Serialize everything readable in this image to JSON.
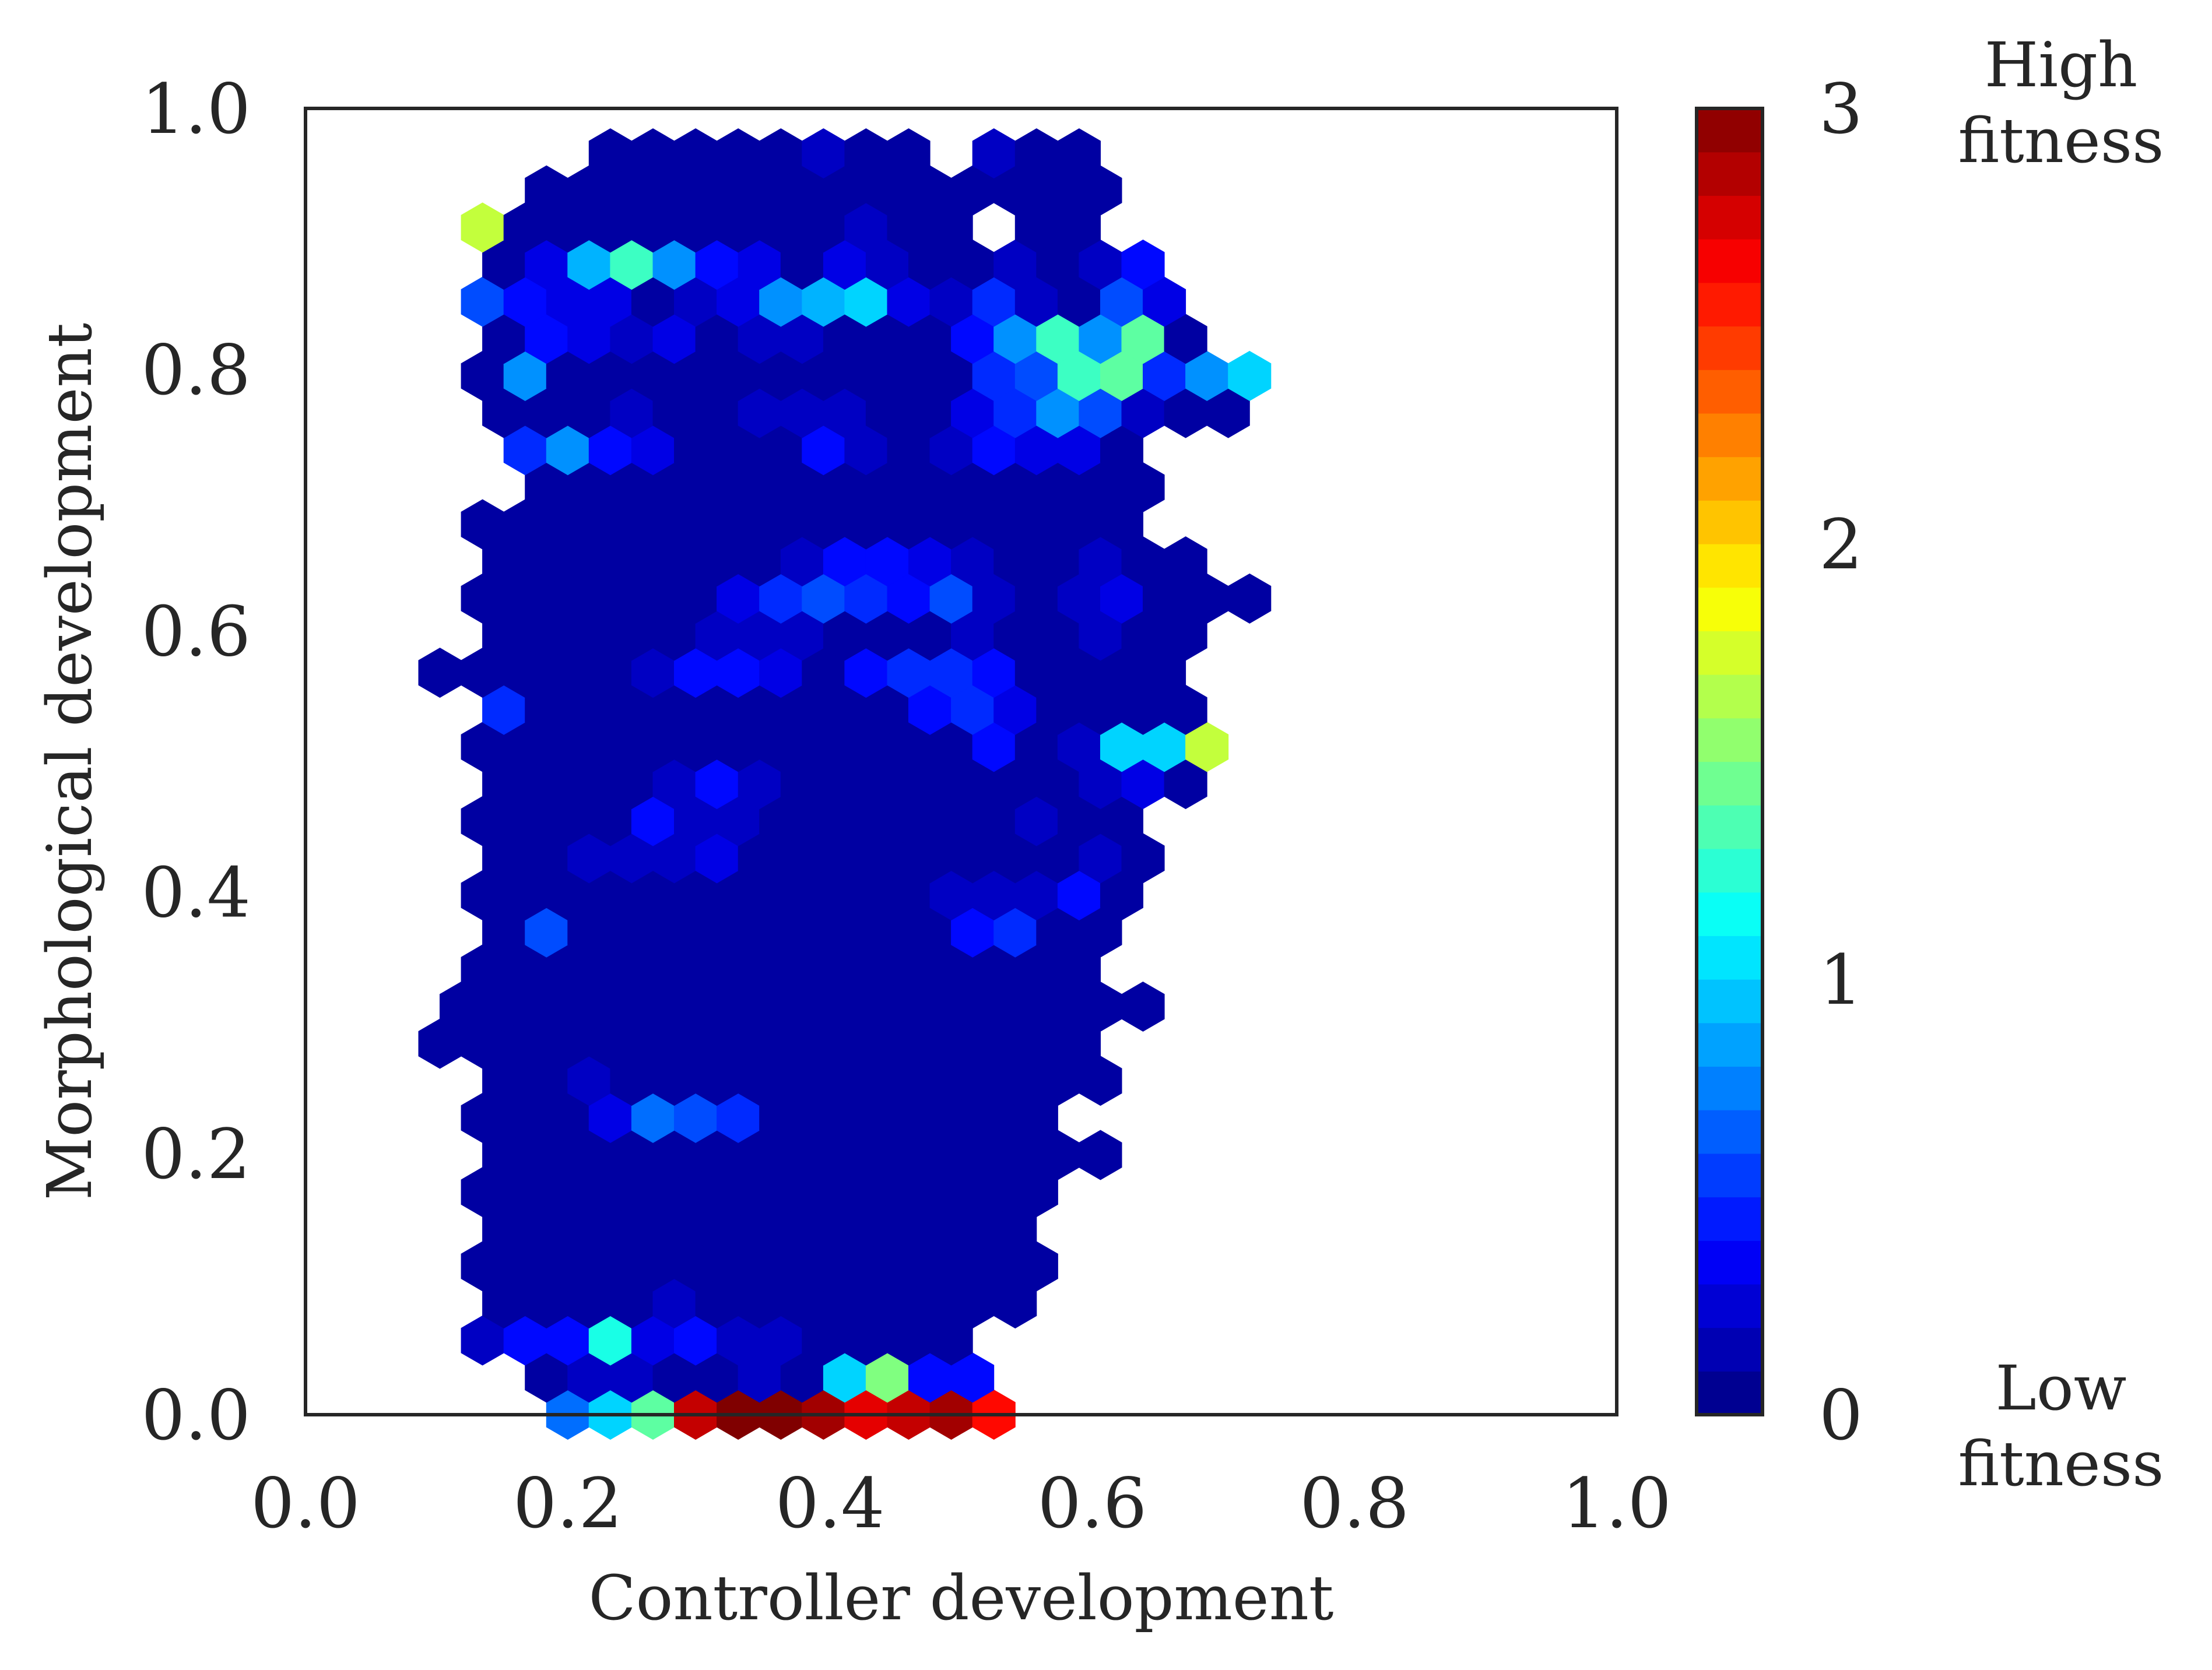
{
  "chart_data": {
    "type": "heatmap",
    "subtype": "hexbin",
    "xlabel": "Controller development",
    "ylabel": "Morphological development",
    "xlim": [
      0,
      1
    ],
    "ylim": [
      0,
      1
    ],
    "x_ticks": [
      "0.0",
      "0.2",
      "0.4",
      "0.6",
      "0.8",
      "1.0"
    ],
    "y_ticks": [
      "0.0",
      "0.2",
      "0.4",
      "0.6",
      "0.8",
      "1.0"
    ],
    "colorbar": {
      "colormap": "jet",
      "range": [
        0,
        3
      ],
      "ticks": [
        "0",
        "1",
        "2",
        "3"
      ],
      "top_label": [
        "High",
        "fitness"
      ],
      "bottom_label": [
        "Low",
        "fitness"
      ]
    },
    "grid": false,
    "hex_grid": {
      "x0": 0.2,
      "dx": 0.0325,
      "y0": 0.0,
      "dy": 0.0284
    },
    "rows": [
      {
        "row": 0,
        "start": 0,
        "values": [
          0.7,
          1.0,
          1.4,
          2.8,
          3.0,
          3.0,
          2.9,
          2.7,
          2.8,
          2.9,
          2.6
        ]
      },
      {
        "row": 1,
        "start": -1,
        "values": [
          0.1,
          0.2,
          0.2,
          0.1,
          0.1,
          0.2,
          0.1,
          1.0,
          1.5,
          0.4,
          0.4
        ]
      },
      {
        "row": 2,
        "start": -2,
        "values": [
          0.2,
          0.4,
          0.4,
          1.2,
          0.3,
          0.4,
          0.2,
          0.2,
          0.1,
          0.1,
          0.1,
          0.1
        ]
      },
      {
        "row": 3,
        "start": -2,
        "values": [
          0.1,
          0.1,
          0.1,
          0.1,
          0.2,
          0.1,
          0.1,
          0.1,
          0.1,
          0.1,
          0.1,
          0.1,
          0.1
        ]
      },
      {
        "row": 4,
        "start": -2,
        "values": [
          0.1,
          0.1,
          0.1,
          0.1,
          0.1,
          0.1,
          0.1,
          0.1,
          0.1,
          0.1,
          0.1,
          0.1,
          0.1,
          0.1
        ]
      },
      {
        "row": 5,
        "start": -2,
        "values": [
          0.1,
          0.1,
          0.1,
          0.1,
          0.1,
          0.1,
          0.1,
          0.1,
          0.1,
          0.1,
          0.1,
          0.1,
          0.1
        ]
      },
      {
        "row": 6,
        "start": -2,
        "values": [
          0.1,
          0.1,
          0.1,
          0.1,
          0.1,
          0.1,
          0.1,
          0.1,
          0.1,
          0.1,
          0.1,
          0.1,
          0.1,
          0.1
        ]
      },
      {
        "row": 7,
        "start": -2,
        "values": [
          0.1,
          0.1,
          0.1,
          0.1,
          0.1,
          0.1,
          0.1,
          0.1,
          0.1,
          0.1,
          0.1,
          0.1,
          0.1,
          0.1,
          0.1
        ]
      },
      {
        "row": 8,
        "start": -2,
        "values": [
          0.1,
          0.1,
          0.1,
          0.3,
          0.7,
          0.6,
          0.5,
          0.1,
          0.1,
          0.1,
          0.1,
          0.1,
          0.1,
          0.1
        ]
      },
      {
        "row": 9,
        "start": -2,
        "values": [
          0.1,
          0.1,
          0.2,
          0.1,
          0.1,
          0.1,
          0.1,
          0.1,
          0.1,
          0.1,
          0.1,
          0.1,
          0.1,
          0.1,
          0.1
        ]
      },
      {
        "row": 10,
        "start": -3,
        "values": [
          0.1,
          0.1,
          0.1,
          0.1,
          0.1,
          0.1,
          0.1,
          0.1,
          0.1,
          0.1,
          0.1,
          0.1,
          0.1,
          0.1,
          0.1,
          0.1
        ]
      },
      {
        "row": 11,
        "start": -3,
        "values": [
          0.1,
          0.1,
          0.1,
          0.1,
          0.1,
          0.1,
          0.1,
          0.1,
          0.1,
          0.1,
          0.1,
          0.1,
          0.1,
          0.1,
          0.1,
          0.1,
          0.1
        ]
      },
      {
        "row": 12,
        "start": -2,
        "values": [
          0.1,
          0.1,
          0.1,
          0.1,
          0.1,
          0.1,
          0.1,
          0.1,
          0.1,
          0.1,
          0.1,
          0.1,
          0.1,
          0.1,
          0.1
        ]
      },
      {
        "row": 13,
        "start": -2,
        "values": [
          0.1,
          0.6,
          0.1,
          0.1,
          0.1,
          0.1,
          0.1,
          0.1,
          0.1,
          0.1,
          0.1,
          0.4,
          0.5,
          0.1,
          0.1
        ]
      },
      {
        "row": 14,
        "start": -2,
        "values": [
          0.1,
          0.1,
          0.1,
          0.1,
          0.1,
          0.1,
          0.1,
          0.1,
          0.1,
          0.1,
          0.1,
          0.2,
          0.2,
          0.2,
          0.4,
          0.1
        ]
      },
      {
        "row": 15,
        "start": -2,
        "values": [
          0.1,
          0.1,
          0.2,
          0.2,
          0.2,
          0.3,
          0.1,
          0.1,
          0.1,
          0.1,
          0.1,
          0.1,
          0.1,
          0.1,
          0.2,
          0.1
        ]
      },
      {
        "row": 16,
        "start": -2,
        "values": [
          0.1,
          0.1,
          0.1,
          0.1,
          0.4,
          0.2,
          0.2,
          0.1,
          0.1,
          0.1,
          0.1,
          0.1,
          0.1,
          0.2,
          0.1,
          0.1
        ]
      },
      {
        "row": 17,
        "start": -2,
        "values": [
          0.1,
          0.1,
          0.1,
          0.1,
          0.2,
          0.4,
          0.2,
          0.1,
          0.1,
          0.1,
          0.1,
          0.1,
          0.1,
          0.1,
          0.2,
          0.3,
          0.1
        ]
      },
      {
        "row": 18,
        "start": -2,
        "values": [
          0.1,
          0.1,
          0.1,
          0.1,
          0.1,
          0.1,
          0.1,
          0.1,
          0.1,
          0.1,
          0.1,
          0.1,
          0.4,
          0.1,
          0.2,
          1.0,
          1.0,
          1.7
        ]
      },
      {
        "row": 19,
        "start": -2,
        "values": [
          0.5,
          0.1,
          0.1,
          0.1,
          0.1,
          0.1,
          0.1,
          0.1,
          0.1,
          0.1,
          0.4,
          0.5,
          0.3,
          0.1,
          0.1,
          0.1,
          0.1
        ]
      },
      {
        "row": 20,
        "start": -3,
        "values": [
          0.1,
          0.1,
          0.1,
          0.1,
          0.1,
          0.2,
          0.4,
          0.4,
          0.3,
          0.1,
          0.4,
          0.5,
          0.5,
          0.4,
          0.1,
          0.1,
          0.1,
          0.1
        ]
      },
      {
        "row": 21,
        "start": -2,
        "values": [
          0.1,
          0.1,
          0.1,
          0.1,
          0.1,
          0.2,
          0.2,
          0.2,
          0.1,
          0.1,
          0.1,
          0.2,
          0.1,
          0.1,
          0.2,
          0.1,
          0.1
        ]
      },
      {
        "row": 22,
        "start": -2,
        "values": [
          0.1,
          0.1,
          0.1,
          0.1,
          0.1,
          0.1,
          0.3,
          0.5,
          0.6,
          0.5,
          0.4,
          0.6,
          0.2,
          0.1,
          0.2,
          0.3,
          0.1,
          0.1,
          0.1
        ]
      },
      {
        "row": 23,
        "start": -2,
        "values": [
          0.1,
          0.1,
          0.1,
          0.1,
          0.1,
          0.1,
          0.1,
          0.2,
          0.4,
          0.4,
          0.3,
          0.2,
          0.1,
          0.1,
          0.2,
          0.1,
          0.1
        ]
      },
      {
        "row": 24,
        "start": -2,
        "values": [
          0.1,
          0.1,
          0.1,
          0.1,
          0.1,
          0.1,
          0.1,
          0.1,
          0.1,
          0.1,
          0.1,
          0.1,
          0.1,
          0.1,
          0.1,
          0.1
        ]
      },
      {
        "row": 25,
        "start": -1,
        "values": [
          0.1,
          0.1,
          0.1,
          0.1,
          0.1,
          0.1,
          0.1,
          0.1,
          0.1,
          0.1,
          0.1,
          0.1,
          0.1,
          0.1,
          0.1
        ]
      },
      {
        "row": 26,
        "start": -1,
        "values": [
          0.5,
          0.8,
          0.4,
          0.3,
          0.1,
          0.1,
          0.1,
          0.4,
          0.2,
          0.1,
          0.2,
          0.4,
          0.3,
          0.3,
          0.1
        ]
      },
      {
        "row": 27,
        "start": -2,
        "values": [
          0.1,
          0.1,
          0.1,
          0.2,
          0.1,
          0.1,
          0.2,
          0.2,
          0.2,
          0.1,
          0.1,
          0.3,
          0.5,
          0.8,
          0.6,
          0.2,
          0.1,
          0.1
        ]
      },
      {
        "row": 28,
        "start": -2,
        "values": [
          0.1,
          0.8,
          0.1,
          0.1,
          0.1,
          0.1,
          0.1,
          0.1,
          0.1,
          0.1,
          0.1,
          0.1,
          0.5,
          0.6,
          1.3,
          1.4,
          0.5,
          0.8,
          1.0
        ]
      },
      {
        "row": 29,
        "start": -2,
        "values": [
          0.1,
          0.4,
          0.3,
          0.2,
          0.3,
          0.1,
          0.2,
          0.2,
          0.1,
          0.1,
          0.1,
          0.4,
          0.8,
          1.3,
          0.8,
          1.4,
          0.1
        ]
      },
      {
        "row": 30,
        "start": -2,
        "values": [
          0.6,
          0.4,
          0.3,
          0.3,
          0.1,
          0.2,
          0.3,
          0.8,
          0.9,
          1.0,
          0.3,
          0.2,
          0.5,
          0.2,
          0.1,
          0.6,
          0.3
        ]
      },
      {
        "row": 31,
        "start": -2,
        "values": [
          0.1,
          0.3,
          0.9,
          1.3,
          0.8,
          0.4,
          0.3,
          0.1,
          0.3,
          0.2,
          0.1,
          0.1,
          0.2,
          0.1,
          0.2,
          0.4
        ]
      },
      {
        "row": 32,
        "start": -2,
        "values": [
          1.7,
          0.1,
          0.1,
          0.1,
          0.1,
          0.1,
          0.1,
          0.1,
          0.1,
          0.2,
          0.1,
          0.1,
          null,
          0.1,
          0.1
        ]
      },
      {
        "row": 33,
        "start": -1,
        "values": [
          0.1,
          0.1,
          0.1,
          0.1,
          0.1,
          0.1,
          0.1,
          0.1,
          0.1,
          0.1,
          0.1,
          0.1,
          0.1,
          0.1
        ]
      },
      {
        "row": 34,
        "start": 1,
        "values": [
          0.1,
          0.1,
          0.1,
          0.1,
          0.1,
          0.2,
          0.1,
          0.1,
          null,
          0.2,
          0.1,
          0.1
        ]
      }
    ]
  }
}
